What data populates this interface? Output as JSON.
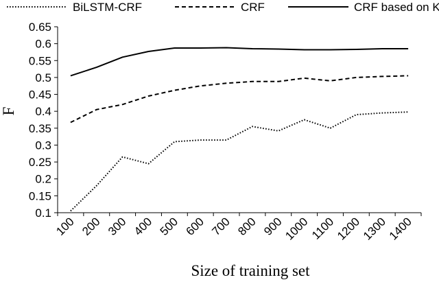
{
  "chart_data": {
    "type": "line",
    "title": "",
    "xlabel": "Size of training set",
    "ylabel": "F",
    "categories": [
      "100",
      "200",
      "300",
      "400",
      "500",
      "600",
      "700",
      "800",
      "900",
      "1000",
      "1100",
      "1200",
      "1300",
      "1400"
    ],
    "ylim": [
      0.1,
      0.65
    ],
    "yticks": [
      "0.1",
      "0.15",
      "0.2",
      "0.25",
      "0.3",
      "0.35",
      "0.4",
      "0.45",
      "0.5",
      "0.55",
      "0.6",
      "0.65"
    ],
    "grid": false,
    "legend_position": "top",
    "series": [
      {
        "name": "BiLSTM-CRF",
        "style": "dotted",
        "values": [
          0.105,
          0.18,
          0.265,
          0.245,
          0.31,
          0.315,
          0.315,
          0.355,
          0.342,
          0.375,
          0.35,
          0.39,
          0.395,
          0.398
        ]
      },
      {
        "name": "CRF",
        "style": "dashed",
        "values": [
          0.367,
          0.405,
          0.42,
          0.445,
          0.462,
          0.475,
          0.483,
          0.488,
          0.488,
          0.498,
          0.49,
          0.5,
          0.503,
          0.505
        ]
      },
      {
        "name": "CRF based on KG",
        "style": "solid",
        "values": [
          0.505,
          0.53,
          0.56,
          0.577,
          0.587,
          0.587,
          0.588,
          0.585,
          0.584,
          0.582,
          0.582,
          0.583,
          0.585,
          0.585
        ]
      }
    ],
    "colors": {
      "line": "#000000",
      "background": "#ffffff"
    }
  }
}
